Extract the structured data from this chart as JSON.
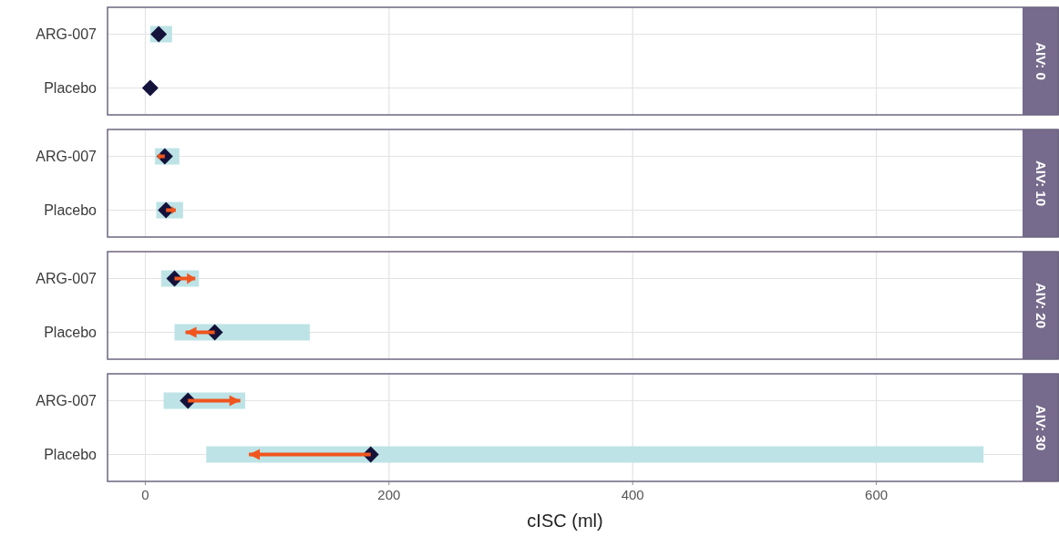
{
  "chart_data": [
    {
      "type": "bar",
      "orientation": "horizontal",
      "y2label": "AIV: 0",
      "categories": [
        "ARG-007",
        "Placebo"
      ],
      "xlim": [
        -31,
        720
      ],
      "xticks": [
        0,
        200,
        400,
        600
      ],
      "grid": true,
      "tick_labels": "y",
      "series": [
        {
          "type": "bar",
          "color": "#bde3e6",
          "base": [
            4,
            null
          ],
          "values": [
            18,
            null
          ]
        },
        {
          "type": "scatter",
          "color": "#14123a",
          "marker": "diamond",
          "values": [
            11,
            4
          ]
        }
      ]
    },
    {
      "type": "bar",
      "orientation": "horizontal",
      "y2label": "AIV: 10",
      "categories": [
        "ARG-007",
        "Placebo"
      ],
      "xlim": [
        -31,
        720
      ],
      "xticks": [
        0,
        200,
        400,
        600
      ],
      "grid": true,
      "tick_labels": "y",
      "series": [
        {
          "type": "bar",
          "color": "#bde3e6",
          "base": [
            8,
            9
          ],
          "values": [
            20,
            22
          ]
        },
        {
          "type": "scatter",
          "color": "#14123a",
          "marker": "diamond",
          "values": [
            16,
            17
          ],
          "errors": [
            [
              10,
              16
            ],
            [
              17,
              25
            ]
          ]
        }
      ]
    },
    {
      "type": "bar",
      "orientation": "horizontal",
      "y2label": "AIV: 20",
      "categories": [
        "ARG-007",
        "Placebo"
      ],
      "xlim": [
        -31,
        720
      ],
      "xticks": [
        0,
        200,
        400,
        600
      ],
      "grid": true,
      "tick_labels": "y",
      "series": [
        {
          "type": "bar",
          "color": "#bde3e6",
          "base": [
            13,
            24
          ],
          "values": [
            31,
            111
          ]
        },
        {
          "type": "scatter",
          "color": "#14123a",
          "marker": "diamond",
          "values": [
            24,
            57
          ],
          "errors": [
            [
              24,
              41
            ],
            [
              33,
              57
            ]
          ]
        }
      ]
    },
    {
      "type": "bar",
      "orientation": "horizontal",
      "y2label": "AIV: 30",
      "xlabel": "cISC (ml)",
      "categories": [
        "ARG-007",
        "Placebo"
      ],
      "xlim": [
        -31,
        720
      ],
      "xticks": [
        0,
        200,
        400,
        600
      ],
      "grid": true,
      "series": [
        {
          "type": "bar",
          "color": "#bde3e6",
          "base": [
            15,
            50
          ],
          "values": [
            67,
            638
          ]
        },
        {
          "type": "scatter",
          "color": "#14123a",
          "marker": "diamond",
          "values": [
            35,
            185
          ],
          "errors": [
            [
              35,
              78
            ],
            [
              85,
              185
            ]
          ]
        }
      ]
    }
  ]
}
